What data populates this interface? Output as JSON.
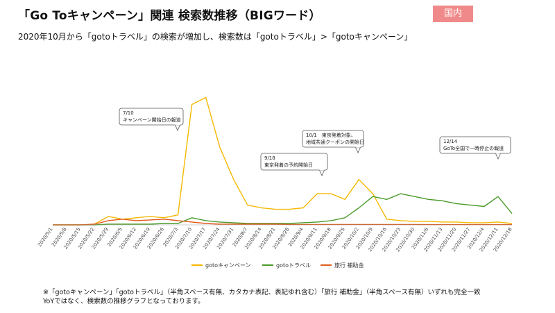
{
  "header": {
    "title": "「Go Toキャンペーン」関連 検索数推移（BIGワード）",
    "badge": "国内",
    "subtitle": "2020年10月から「gotoトラベル」の検索が増加し、検索数は「gotoトラベル」>「gotoキャンペーン」"
  },
  "notes": {
    "line1": "※「gotoキャンペーン」「gotoトラベル」（半角スペース有無、カタカナ表記、表記ゆれ含む）「旅行 補助金」（半角スペース有無）いずれも完全一致",
    "line2": "YoYではなく、検索数の推移グラフとなっております。"
  },
  "chart_data": {
    "type": "line",
    "x": [
      "2020/5/1",
      "2020/5/8",
      "2020/5/15",
      "2020/5/22",
      "2020/5/29",
      "2020/6/5",
      "2020/6/12",
      "2020/6/19",
      "2020/6/26",
      "2020/7/3",
      "2020/7/10",
      "2020/7/17",
      "2020/7/24",
      "2020/7/31",
      "2020/8/7",
      "2020/8/14",
      "2020/8/21",
      "2020/8/28",
      "2020/9/4",
      "2020/9/11",
      "2020/9/18",
      "2020/9/25",
      "2020/10/2",
      "2020/10/9",
      "2020/10/16",
      "2020/10/23",
      "2020/10/30",
      "2020/11/6",
      "2020/11/13",
      "2020/11/20",
      "2020/11/27",
      "2020/12/4",
      "2020/12/11",
      "2020/12/18"
    ],
    "x_tick_labels": [
      "2020/5/1",
      "2020/5/8",
      "2020/5/15",
      "2020/5/22",
      "2020/5/29",
      "2020/6/5",
      "2020/6/12",
      "2020/6/19",
      "2020/6/26",
      "2020/7/3",
      "2020/7/10",
      "2020/7/17",
      "2020/7/24",
      "2020/7/31",
      "2020/8/7",
      "2020/8/14",
      "2020/8/21",
      "2020/8/28",
      "2020/9/4",
      "2020/9/11",
      "2020/9/18",
      "2020/9/25",
      "2020/10/2",
      "2020/10/9",
      "2020/10/16",
      "2020/10/23",
      "2020/10/30",
      "2020/11/6",
      "2020/11/13",
      "2020/11/20",
      "2020/11/27",
      "2020/12/4",
      "2020/12/11",
      "2020/12/18"
    ],
    "ylim": [
      0,
      100
    ],
    "grid": false,
    "legend_position": "bottom",
    "series": [
      {
        "name": "gotoキャンペーン",
        "color": "#f5b800",
        "values": [
          0,
          0,
          0,
          0.5,
          6,
          4,
          5,
          6,
          5,
          7,
          85,
          90,
          55,
          32,
          14,
          12,
          11,
          11,
          12,
          22,
          22,
          18,
          32,
          22,
          4,
          3,
          2.5,
          2.5,
          2,
          2,
          1.5,
          1.5,
          2,
          1
        ]
      },
      {
        "name": "gotoトラベル",
        "color": "#4a9a2a",
        "values": [
          0,
          0,
          0,
          0,
          0.5,
          0.5,
          0.5,
          0.5,
          1,
          1,
          5,
          3,
          2,
          1.5,
          1,
          1,
          1,
          1,
          1.5,
          2,
          3,
          5,
          12,
          20,
          18,
          22,
          20,
          18,
          17,
          15,
          14,
          13,
          20,
          8
        ]
      },
      {
        "name": "旅行 補助金",
        "color": "#e05a1a",
        "values": [
          0,
          0,
          0,
          0.5,
          3,
          4,
          3,
          3.5,
          4,
          3,
          2,
          1,
          0.5,
          0.5,
          0.5,
          0.5,
          0.5,
          0.3,
          0.3,
          0.3,
          0.3,
          0.3,
          0.3,
          0.3,
          0.3,
          0.3,
          0.3,
          0.2,
          0.2,
          0.2,
          0.2,
          0.2,
          0.2,
          0.2
        ]
      }
    ],
    "annotations": [
      {
        "x": "2020/7/10",
        "line1": "7/10",
        "line2": "キャンペーン開始日の報道"
      },
      {
        "x": "2020/9/18",
        "line1": "9/18",
        "line2": "東京発着の予約開始日"
      },
      {
        "x": "2020/10/2",
        "line1": "10/1　東京発着対象、",
        "line2": "地域共通クーポンの開始日"
      },
      {
        "x": "2020/12/11",
        "line1": "12/14",
        "line2": "GoTo全国で一時停止の報道"
      }
    ]
  }
}
